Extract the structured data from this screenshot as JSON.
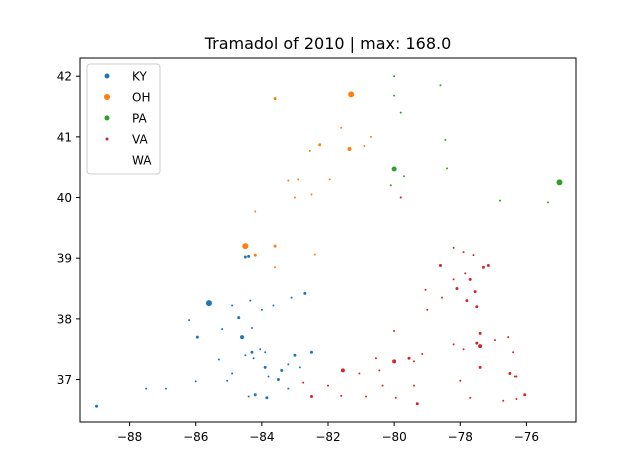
{
  "chart_data": {
    "type": "scatter",
    "title": "Tramadol of 2010 | max: 168.0",
    "xlabel": "",
    "ylabel": "",
    "xlim": [
      -89.5,
      -74.5
    ],
    "ylim": [
      36.3,
      42.3
    ],
    "x_ticks": [
      -88,
      -86,
      -84,
      -82,
      -80,
      -78,
      -76
    ],
    "x_tick_labels": [
      "−88",
      "−86",
      "−84",
      "−82",
      "−80",
      "−78",
      "−76"
    ],
    "y_ticks": [
      37,
      38,
      39,
      40,
      41,
      42
    ],
    "y_tick_labels": [
      "37",
      "38",
      "39",
      "40",
      "41",
      "42"
    ],
    "grid": false,
    "legend_position": "top-left",
    "series": [
      {
        "name": "KY",
        "color": "#1f77b4",
        "points": [
          [
            -89.0,
            36.56,
            1.5
          ],
          [
            -87.5,
            36.85,
            1
          ],
          [
            -86.9,
            36.85,
            1
          ],
          [
            -86.0,
            36.97,
            1
          ],
          [
            -85.6,
            38.26,
            3
          ],
          [
            -86.2,
            37.98,
            1
          ],
          [
            -85.95,
            37.7,
            1.5
          ],
          [
            -85.3,
            37.33,
            1
          ],
          [
            -85.2,
            37.83,
            1
          ],
          [
            -85.05,
            36.98,
            1
          ],
          [
            -84.9,
            37.1,
            1
          ],
          [
            -84.9,
            38.22,
            1
          ],
          [
            -84.7,
            38.02,
            1.5
          ],
          [
            -84.6,
            37.7,
            2
          ],
          [
            -84.5,
            39.02,
            1.5
          ],
          [
            -84.4,
            39.03,
            1.5
          ],
          [
            -84.5,
            37.4,
            1
          ],
          [
            -84.3,
            37.85,
            1
          ],
          [
            -84.3,
            37.45,
            1.5
          ],
          [
            -84.25,
            37.35,
            1
          ],
          [
            -84.2,
            36.75,
            1.5
          ],
          [
            -84.05,
            37.5,
            1
          ],
          [
            -84.0,
            38.15,
            1
          ],
          [
            -83.9,
            37.2,
            1.5
          ],
          [
            -83.9,
            37.45,
            1
          ],
          [
            -83.85,
            36.7,
            1.5
          ],
          [
            -83.8,
            37.05,
            1
          ],
          [
            -83.65,
            38.22,
            1
          ],
          [
            -83.5,
            37.0,
            1.5
          ],
          [
            -83.4,
            37.15,
            1.5
          ],
          [
            -83.2,
            37.25,
            1
          ],
          [
            -83.2,
            36.85,
            1
          ],
          [
            -83.1,
            38.35,
            1
          ],
          [
            -83.0,
            37.4,
            1.5
          ],
          [
            -82.7,
            38.42,
            1.5
          ],
          [
            -82.5,
            37.45,
            1.5
          ],
          [
            -84.35,
            38.3,
            1
          ],
          [
            -84.4,
            36.72,
            1
          ],
          [
            -82.85,
            37.2,
            1
          ]
        ]
      },
      {
        "name": "OH",
        "color": "#ff7f0e",
        "points": [
          [
            -83.6,
            41.63,
            1.5
          ],
          [
            -81.3,
            41.7,
            3
          ],
          [
            -81.6,
            41.15,
            1
          ],
          [
            -80.7,
            41.0,
            1
          ],
          [
            -80.9,
            40.85,
            1
          ],
          [
            -82.25,
            40.87,
            1.5
          ],
          [
            -81.35,
            40.8,
            2
          ],
          [
            -82.55,
            40.77,
            1
          ],
          [
            -83.2,
            40.28,
            1
          ],
          [
            -83.0,
            40.0,
            1
          ],
          [
            -82.5,
            40.05,
            1
          ],
          [
            -81.95,
            40.3,
            1
          ],
          [
            -84.2,
            39.77,
            1
          ],
          [
            -84.5,
            39.2,
            3
          ],
          [
            -84.2,
            39.05,
            1.5
          ],
          [
            -83.6,
            39.2,
            1.5
          ],
          [
            -83.6,
            38.85,
            1
          ],
          [
            -82.4,
            39.06,
            1
          ],
          [
            -82.9,
            40.3,
            1
          ]
        ]
      },
      {
        "name": "PA",
        "color": "#2ca02c",
        "points": [
          [
            -80.0,
            42.0,
            1
          ],
          [
            -78.6,
            41.85,
            1
          ],
          [
            -80.0,
            41.68,
            1
          ],
          [
            -79.8,
            41.4,
            1
          ],
          [
            -78.45,
            40.95,
            1
          ],
          [
            -80.0,
            40.47,
            2.5
          ],
          [
            -79.7,
            40.35,
            1
          ],
          [
            -78.4,
            40.48,
            1
          ],
          [
            -80.1,
            40.2,
            1
          ],
          [
            -79.8,
            40.0,
            1
          ],
          [
            -76.8,
            39.95,
            1
          ],
          [
            -75.35,
            39.92,
            1
          ],
          [
            -75.0,
            40.25,
            3
          ]
        ]
      },
      {
        "name": "VA",
        "color": "#d62728",
        "points": [
          [
            -79.8,
            40.0,
            1
          ],
          [
            -78.2,
            39.17,
            1
          ],
          [
            -77.9,
            39.1,
            1
          ],
          [
            -78.6,
            38.88,
            1.5
          ],
          [
            -77.6,
            39.05,
            1
          ],
          [
            -77.3,
            38.85,
            1.5
          ],
          [
            -77.15,
            38.88,
            1.5
          ],
          [
            -77.85,
            38.75,
            1
          ],
          [
            -78.2,
            38.65,
            1
          ],
          [
            -77.7,
            38.65,
            1.5
          ],
          [
            -79.05,
            38.48,
            1
          ],
          [
            -78.55,
            38.35,
            1
          ],
          [
            -78.1,
            38.5,
            1.5
          ],
          [
            -77.55,
            38.45,
            1.5
          ],
          [
            -77.8,
            38.3,
            1.5
          ],
          [
            -77.5,
            38.2,
            1.5
          ],
          [
            -79.0,
            38.15,
            1
          ],
          [
            -80.0,
            37.8,
            1
          ],
          [
            -77.4,
            37.76,
            1.5
          ],
          [
            -77.5,
            37.6,
            1.5
          ],
          [
            -76.55,
            37.7,
            1
          ],
          [
            -76.95,
            37.65,
            1
          ],
          [
            -78.2,
            37.58,
            1
          ],
          [
            -77.4,
            37.55,
            2
          ],
          [
            -77.9,
            37.5,
            1
          ],
          [
            -76.4,
            37.45,
            1
          ],
          [
            -79.15,
            37.42,
            1
          ],
          [
            -79.55,
            37.35,
            1.5
          ],
          [
            -80.55,
            37.35,
            1
          ],
          [
            -80.0,
            37.3,
            2
          ],
          [
            -81.55,
            37.15,
            2
          ],
          [
            -81.05,
            37.1,
            1
          ],
          [
            -79.4,
            37.3,
            1
          ],
          [
            -80.45,
            37.15,
            1
          ],
          [
            -77.4,
            37.2,
            1.5
          ],
          [
            -76.5,
            37.1,
            1.5
          ],
          [
            -76.35,
            37.05,
            1
          ],
          [
            -78.0,
            36.98,
            1
          ],
          [
            -82.75,
            36.95,
            1
          ],
          [
            -82.0,
            36.9,
            1
          ],
          [
            -80.35,
            36.9,
            1
          ],
          [
            -79.4,
            36.9,
            1
          ],
          [
            -80.85,
            36.72,
            1
          ],
          [
            -82.5,
            36.72,
            1.5
          ],
          [
            -81.6,
            36.73,
            1
          ],
          [
            -79.95,
            36.7,
            1
          ],
          [
            -79.3,
            36.6,
            1.5
          ],
          [
            -77.7,
            36.7,
            1
          ],
          [
            -76.7,
            36.65,
            1
          ],
          [
            -76.3,
            36.68,
            1
          ],
          [
            -76.05,
            36.75,
            1.5
          ],
          [
            -76.3,
            37.05,
            1
          ]
        ]
      },
      {
        "name": "WA",
        "color": "#9467bd",
        "points": []
      }
    ]
  }
}
